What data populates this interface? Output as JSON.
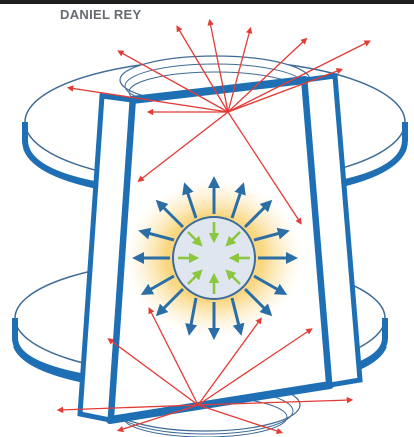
{
  "header": {
    "credit": "DANIEL REY"
  },
  "colors": {
    "frame_blue": "#1f6fb5",
    "glow_yellow": "#f8cf6a",
    "laser_red": "#e33b36",
    "outward_arrow": "#2b6ea6",
    "inward_arrow": "#8cc63f",
    "sphere_fill": "#dfe6f0",
    "outline": "#3e6b96"
  },
  "icons": [
    "outward-arrow-icon",
    "inward-arrow-icon",
    "laser-beam-icon"
  ]
}
